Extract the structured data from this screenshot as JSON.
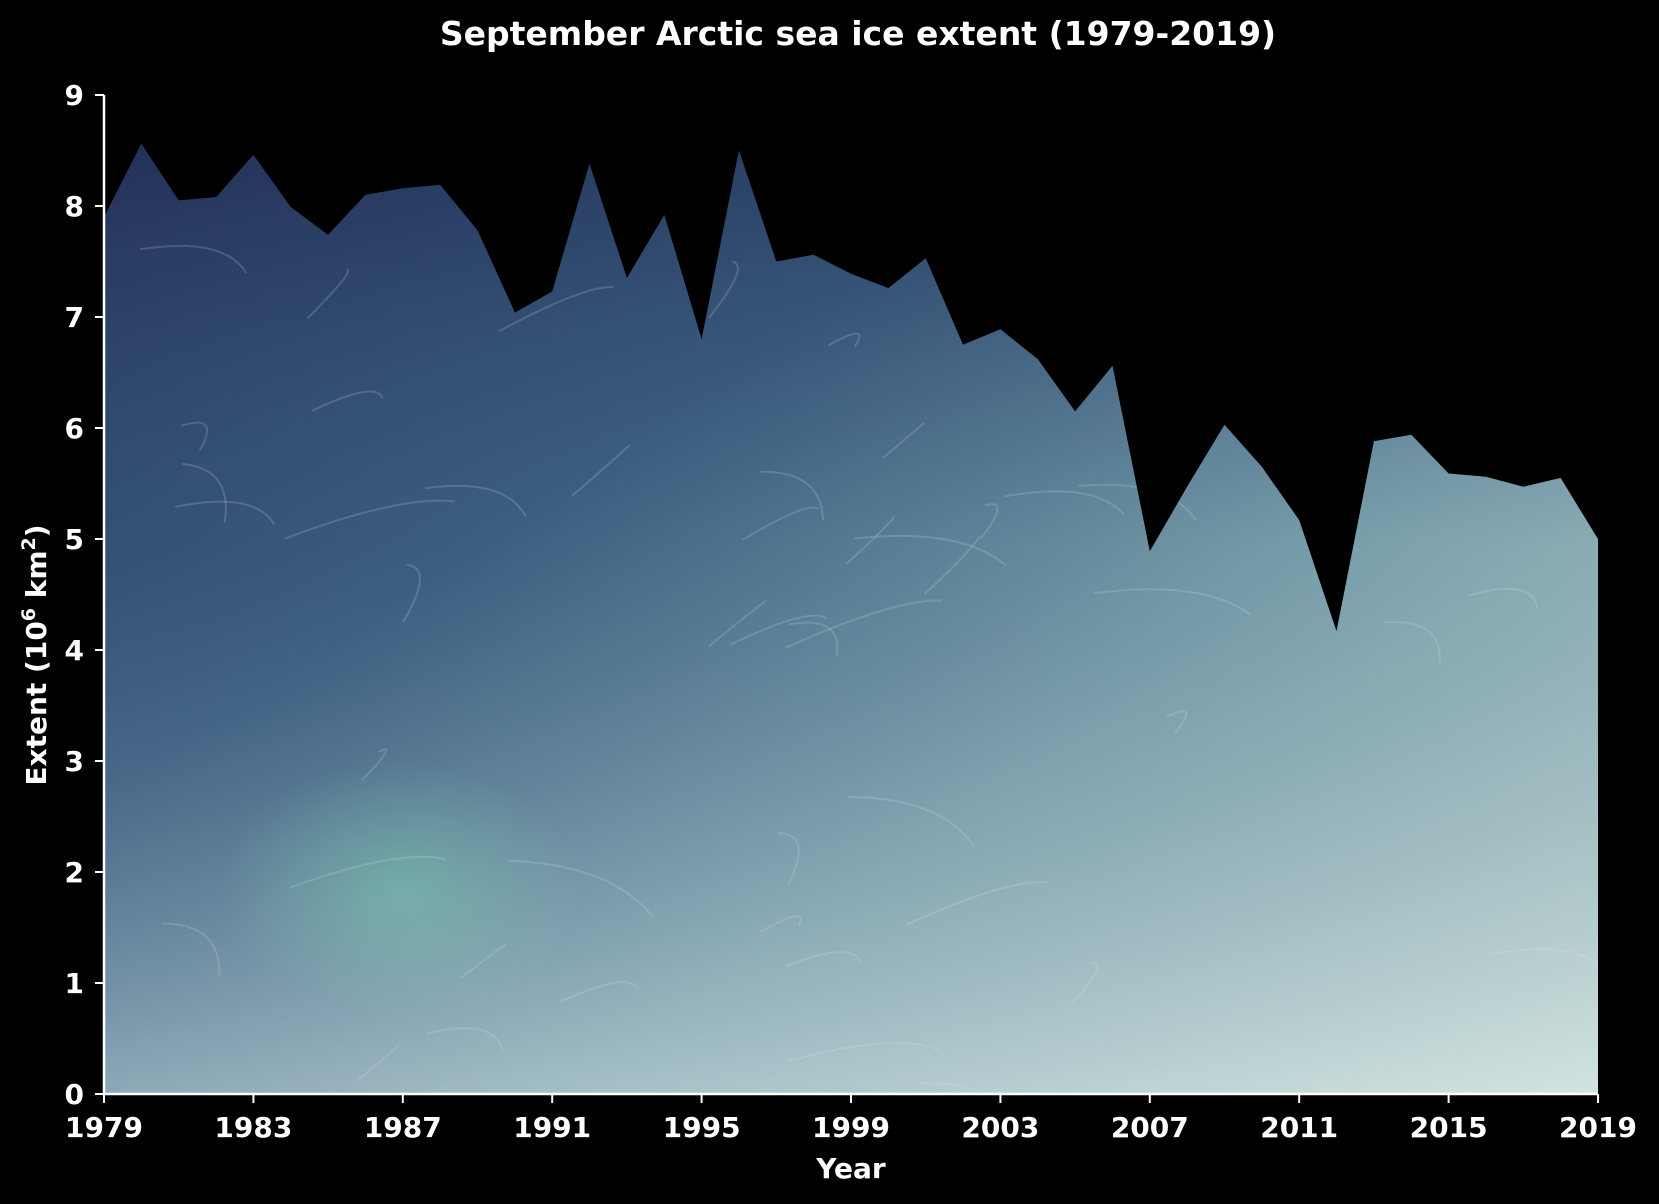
{
  "chart_data": {
    "type": "area",
    "title": "September Arctic sea ice extent (1979-2019)",
    "xlabel": "Year",
    "ylabel": "Extent (10",
    "ylabel_sup1": "6",
    "ylabel_unit": " km",
    "ylabel_sup2": "2",
    "ylabel_close": ")",
    "xlim": [
      1979,
      2019
    ],
    "ylim": [
      0,
      9
    ],
    "x_ticks": [
      1979,
      1983,
      1987,
      1991,
      1995,
      1999,
      2003,
      2007,
      2011,
      2015,
      2019
    ],
    "y_ticks": [
      0,
      1,
      2,
      3,
      4,
      5,
      6,
      7,
      8,
      9
    ],
    "grid": false,
    "legend": "none",
    "fill": "sea-ice texture",
    "x": [
      1979,
      1980,
      1981,
      1982,
      1983,
      1984,
      1985,
      1986,
      1987,
      1988,
      1989,
      1990,
      1991,
      1992,
      1993,
      1994,
      1995,
      1996,
      1997,
      1998,
      1999,
      2000,
      2001,
      2002,
      2003,
      2004,
      2005,
      2006,
      2007,
      2008,
      2009,
      2010,
      2011,
      2012,
      2013,
      2014,
      2015,
      2016,
      2017,
      2018,
      2019
    ],
    "values": [
      7.9,
      8.56,
      8.05,
      8.08,
      8.46,
      7.99,
      7.74,
      8.1,
      8.16,
      8.19,
      7.78,
      7.04,
      7.23,
      8.38,
      7.35,
      7.92,
      6.8,
      8.5,
      7.5,
      7.56,
      7.39,
      7.26,
      7.53,
      6.75,
      6.89,
      6.62,
      6.15,
      6.56,
      4.89,
      5.47,
      6.03,
      5.65,
      5.17,
      4.17,
      5.88,
      5.94,
      5.59,
      5.56,
      5.47,
      5.55,
      5.0
    ]
  }
}
